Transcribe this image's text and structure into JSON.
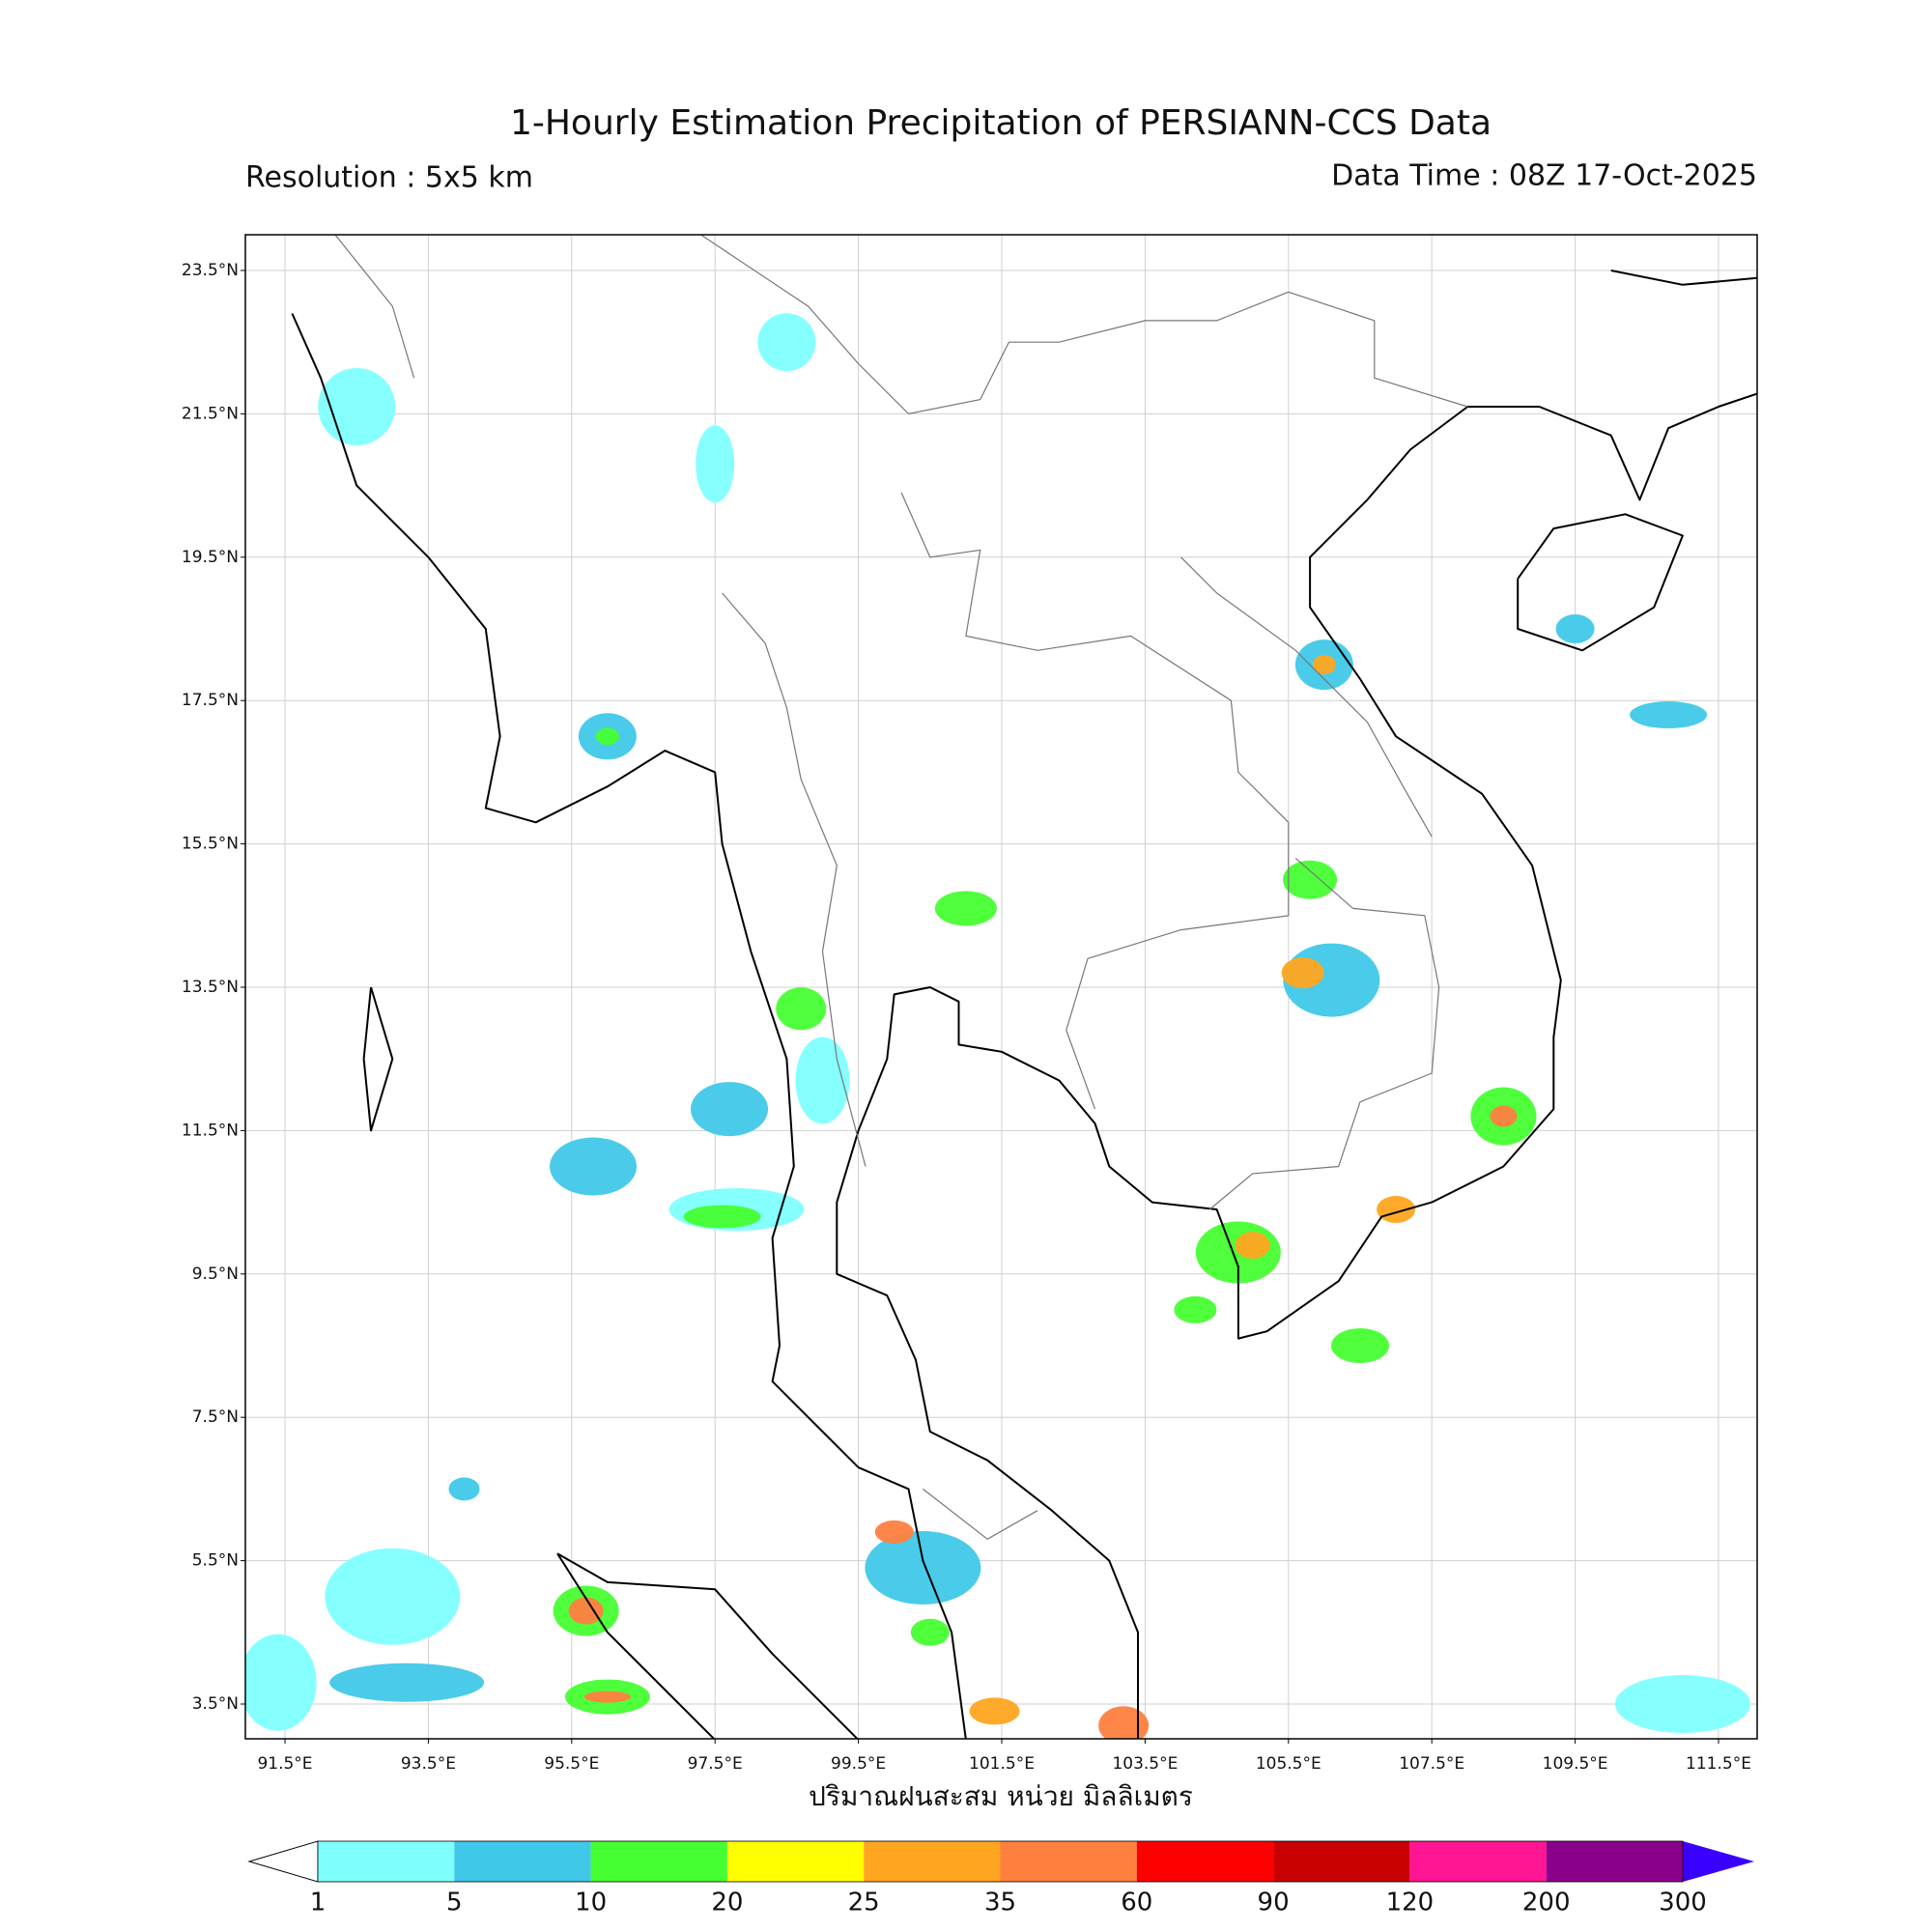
{
  "header": {
    "title": "1-Hourly Estimation Precipitation of PERSIANN-CCS Data",
    "resolution": "Resolution : 5x5 km",
    "data_time": "Data Time : 08Z 17-Oct-2025"
  },
  "map": {
    "lat_labels": [
      "23.5°N",
      "21.5°N",
      "19.5°N",
      "17.5°N",
      "15.5°N",
      "13.5°N",
      "11.5°N",
      "9.5°N",
      "7.5°N",
      "5.5°N",
      "3.5°N"
    ],
    "lon_labels": [
      "91.5°E",
      "93.5°E",
      "95.5°E",
      "97.5°E",
      "99.5°E",
      "101.5°E",
      "103.5°E",
      "105.5°E",
      "107.5°E",
      "109.5°E",
      "111.5°E"
    ],
    "x_label": "ปริมาณฝนสะสม หน่วย มิลลิเมตร"
  },
  "colorbar": {
    "levels": [
      1,
      5,
      10,
      20,
      25,
      35,
      60,
      90,
      120,
      200,
      300
    ],
    "colors": [
      "#80ffff",
      "#40c8e8",
      "#46ff32",
      "#ffff00",
      "#ffa520",
      "#ff7f3f",
      "#ff0000",
      "#c80000",
      "#ff1493",
      "#8b008b"
    ],
    "under_color": "#ffffff",
    "over_color": "#3a00ff"
  }
}
